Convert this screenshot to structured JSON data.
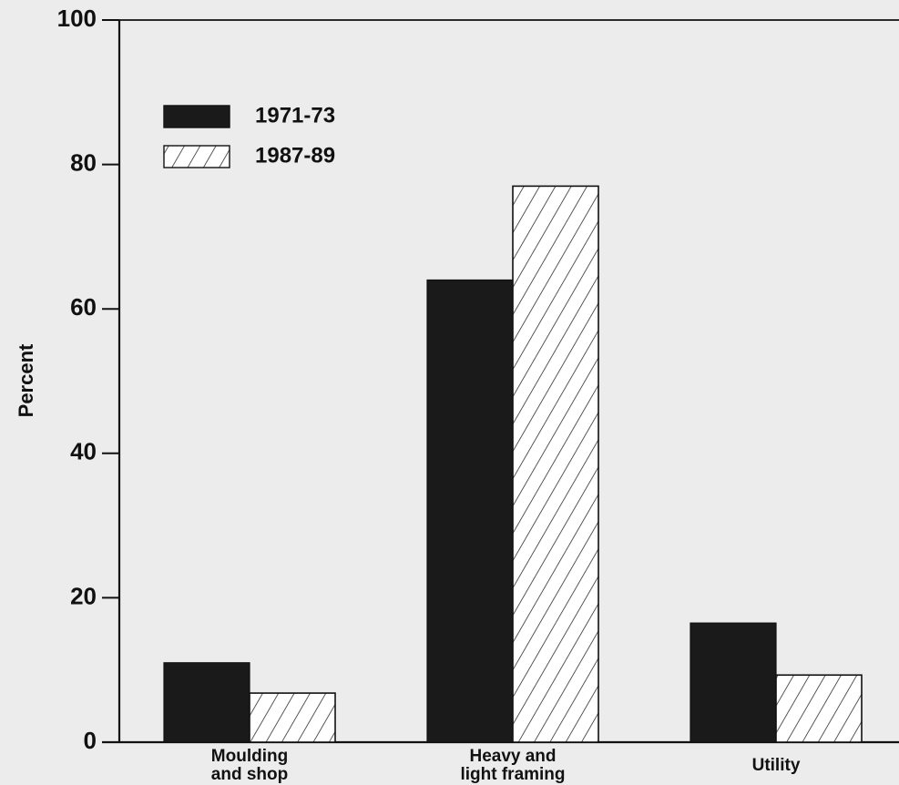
{
  "chart_data": {
    "type": "bar",
    "title": "",
    "xlabel": "",
    "ylabel": "Percent",
    "ylim": [
      0,
      100
    ],
    "yticks": [
      0,
      20,
      40,
      60,
      80,
      100
    ],
    "grid": false,
    "legend_position": "top-left",
    "categories": [
      [
        "Moulding",
        "and shop"
      ],
      [
        "Heavy and",
        "light framing"
      ],
      [
        "Utility"
      ]
    ],
    "series": [
      {
        "name": "1971-73",
        "style": "solid",
        "color": "#1a1a1a",
        "values": [
          11,
          64,
          16.5
        ]
      },
      {
        "name": "1987-89",
        "style": "hatched",
        "color": "#ffffff",
        "values": [
          6.8,
          77,
          9.3
        ]
      }
    ]
  }
}
